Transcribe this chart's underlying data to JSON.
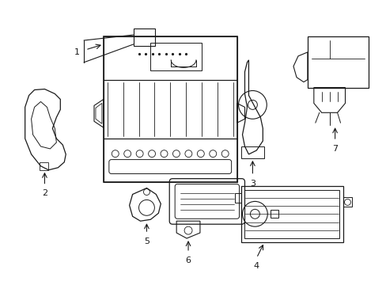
{
  "background_color": "#ffffff",
  "line_color": "#1a1a1a",
  "line_width": 0.8,
  "label_fontsize": 8
}
